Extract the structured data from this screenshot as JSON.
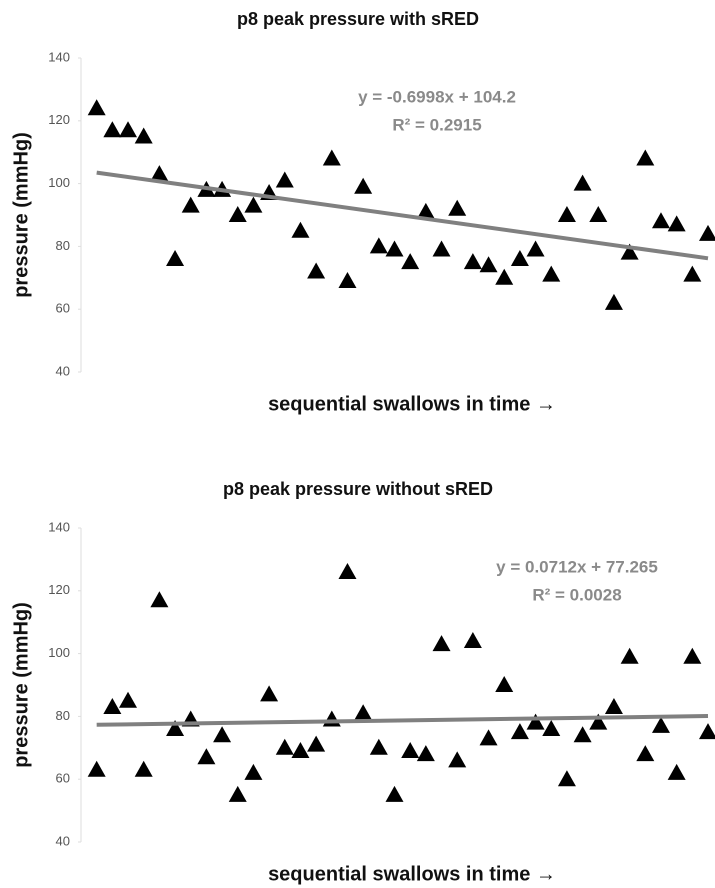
{
  "chart_data": [
    {
      "type": "scatter",
      "title": "p8 peak pressure  with sRED",
      "y_label": "pressure (mmHg)",
      "x_label": "sequential swallows in time →",
      "x": [
        1,
        2,
        3,
        4,
        5,
        6,
        7,
        8,
        9,
        10,
        11,
        12,
        13,
        14,
        15,
        16,
        17,
        18,
        19,
        20,
        21,
        22,
        23,
        24,
        25,
        26,
        27,
        28,
        29,
        30,
        31,
        32,
        33,
        34,
        35,
        36,
        37,
        38,
        39,
        40
      ],
      "values": [
        124,
        117,
        117,
        115,
        103,
        76,
        93,
        98,
        98,
        90,
        93,
        97,
        101,
        85,
        72,
        108,
        69,
        99,
        80,
        79,
        75,
        91,
        79,
        92,
        75,
        74,
        70,
        76,
        79,
        71,
        90,
        100,
        90,
        62,
        78,
        108,
        88,
        87,
        71,
        84
      ],
      "color": "#000000",
      "xlim": [
        0,
        40
      ],
      "ylim": [
        40,
        140
      ],
      "yticks": [
        40,
        60,
        80,
        100,
        120,
        140
      ],
      "trendline": {
        "slope": -0.6998,
        "intercept": 104.2,
        "color": "#808080",
        "equation": "y = -0.6998x + 104.2",
        "r2": "R² = 0.2915"
      }
    },
    {
      "type": "scatter",
      "title": "p8 peak pressure  without sRED",
      "y_label": "pressure (mmHg)",
      "x_label": "sequential swallows in time →",
      "x": [
        1,
        2,
        3,
        4,
        5,
        6,
        7,
        8,
        9,
        10,
        11,
        12,
        13,
        14,
        15,
        16,
        17,
        18,
        19,
        20,
        21,
        22,
        23,
        24,
        25,
        26,
        27,
        28,
        29,
        30,
        31,
        32,
        33,
        34,
        35,
        36,
        37,
        38,
        39,
        40
      ],
      "values": [
        63,
        83,
        85,
        63,
        117,
        76,
        79,
        67,
        74,
        55,
        62,
        87,
        70,
        69,
        71,
        79,
        126,
        81,
        70,
        55,
        69,
        68,
        103,
        66,
        104,
        73,
        90,
        75,
        78,
        76,
        60,
        74,
        78,
        83,
        99,
        68,
        77,
        62,
        99,
        75
      ],
      "color": "#000000",
      "xlim": [
        0,
        40
      ],
      "ylim": [
        40,
        140
      ],
      "yticks": [
        40,
        60,
        80,
        100,
        120,
        140
      ],
      "trendline": {
        "slope": 0.0712,
        "intercept": 77.265,
        "color": "#808080",
        "equation": "y = 0.0712x + 77.265",
        "r2": "R² = 0.0028"
      }
    }
  ]
}
